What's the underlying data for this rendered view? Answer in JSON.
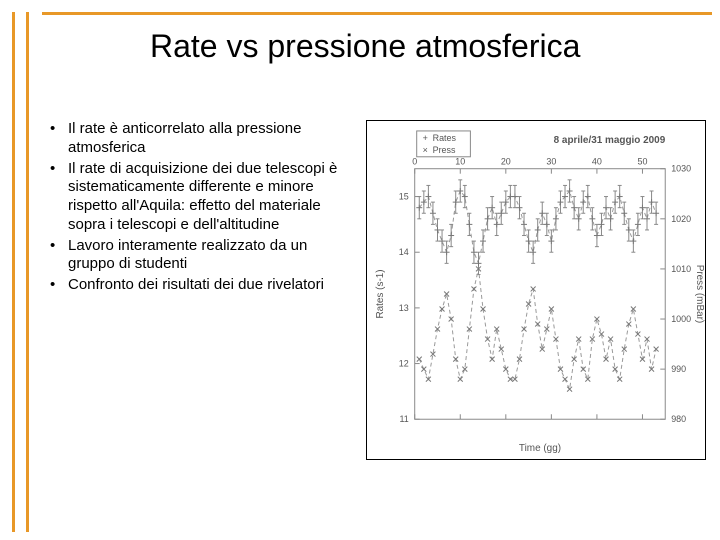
{
  "title": "Rate vs pressione atmosferica",
  "bullets": [
    "Il rate è anticorrelato alla pressione atmosferica",
    "Il rate di acquisizione dei due telescopi è sistematicamente differente e minore rispetto all'Aquila: effetto del materiale sopra i telescopi e dell'altitudine",
    "Lavoro interamente realizzato da un gruppo di studenti",
    "Confronto dei risultati dei due rivelatori"
  ],
  "chart": {
    "type": "dual-axis-scatter-line",
    "title_text": "8 aprile/31 maggio 2009",
    "legend": [
      {
        "symbol": "+",
        "label": "Rates"
      },
      {
        "symbol": "×",
        "label": "Press"
      }
    ],
    "x_axis": {
      "label": "Time (gg)",
      "min": 0,
      "max": 55,
      "ticks": [
        0,
        10,
        20,
        30,
        40,
        50
      ]
    },
    "y_left": {
      "label": "Rates (s-1)",
      "min": 11,
      "max": 15.5,
      "ticks": [
        11,
        12,
        13,
        14,
        15
      ]
    },
    "y_right": {
      "label": "Press (mBar)",
      "min": 980,
      "max": 1030,
      "ticks": [
        980,
        990,
        1000,
        1010,
        1020,
        1030
      ]
    },
    "rates_data": [
      {
        "x": 1,
        "y": 14.8
      },
      {
        "x": 2,
        "y": 14.9
      },
      {
        "x": 3,
        "y": 15.0
      },
      {
        "x": 4,
        "y": 14.7
      },
      {
        "x": 5,
        "y": 14.4
      },
      {
        "x": 6,
        "y": 14.2
      },
      {
        "x": 7,
        "y": 14.0
      },
      {
        "x": 8,
        "y": 14.3
      },
      {
        "x": 9,
        "y": 14.9
      },
      {
        "x": 10,
        "y": 15.1
      },
      {
        "x": 11,
        "y": 15.0
      },
      {
        "x": 12,
        "y": 14.5
      },
      {
        "x": 13,
        "y": 14.0
      },
      {
        "x": 14,
        "y": 13.8
      },
      {
        "x": 15,
        "y": 14.2
      },
      {
        "x": 16,
        "y": 14.6
      },
      {
        "x": 17,
        "y": 14.8
      },
      {
        "x": 18,
        "y": 14.5
      },
      {
        "x": 19,
        "y": 14.7
      },
      {
        "x": 20,
        "y": 14.9
      },
      {
        "x": 21,
        "y": 15.0
      },
      {
        "x": 22,
        "y": 15.0
      },
      {
        "x": 23,
        "y": 14.8
      },
      {
        "x": 24,
        "y": 14.5
      },
      {
        "x": 25,
        "y": 14.2
      },
      {
        "x": 26,
        "y": 14.0
      },
      {
        "x": 27,
        "y": 14.4
      },
      {
        "x": 28,
        "y": 14.7
      },
      {
        "x": 29,
        "y": 14.5
      },
      {
        "x": 30,
        "y": 14.2
      },
      {
        "x": 31,
        "y": 14.6
      },
      {
        "x": 32,
        "y": 14.9
      },
      {
        "x": 33,
        "y": 15.0
      },
      {
        "x": 34,
        "y": 15.1
      },
      {
        "x": 35,
        "y": 14.8
      },
      {
        "x": 36,
        "y": 14.6
      },
      {
        "x": 37,
        "y": 14.9
      },
      {
        "x": 38,
        "y": 15.0
      },
      {
        "x": 39,
        "y": 14.6
      },
      {
        "x": 40,
        "y": 14.3
      },
      {
        "x": 41,
        "y": 14.5
      },
      {
        "x": 42,
        "y": 14.8
      },
      {
        "x": 43,
        "y": 14.6
      },
      {
        "x": 44,
        "y": 14.9
      },
      {
        "x": 45,
        "y": 15.0
      },
      {
        "x": 46,
        "y": 14.7
      },
      {
        "x": 47,
        "y": 14.4
      },
      {
        "x": 48,
        "y": 14.2
      },
      {
        "x": 49,
        "y": 14.5
      },
      {
        "x": 50,
        "y": 14.8
      },
      {
        "x": 51,
        "y": 14.6
      },
      {
        "x": 52,
        "y": 14.9
      },
      {
        "x": 53,
        "y": 14.7
      }
    ],
    "press_data": [
      {
        "x": 1,
        "y": 992
      },
      {
        "x": 2,
        "y": 990
      },
      {
        "x": 3,
        "y": 988
      },
      {
        "x": 4,
        "y": 993
      },
      {
        "x": 5,
        "y": 998
      },
      {
        "x": 6,
        "y": 1002
      },
      {
        "x": 7,
        "y": 1005
      },
      {
        "x": 8,
        "y": 1000
      },
      {
        "x": 9,
        "y": 992
      },
      {
        "x": 10,
        "y": 988
      },
      {
        "x": 11,
        "y": 990
      },
      {
        "x": 12,
        "y": 998
      },
      {
        "x": 13,
        "y": 1006
      },
      {
        "x": 14,
        "y": 1010
      },
      {
        "x": 15,
        "y": 1002
      },
      {
        "x": 16,
        "y": 996
      },
      {
        "x": 17,
        "y": 992
      },
      {
        "x": 18,
        "y": 998
      },
      {
        "x": 19,
        "y": 994
      },
      {
        "x": 20,
        "y": 990
      },
      {
        "x": 21,
        "y": 988
      },
      {
        "x": 22,
        "y": 988
      },
      {
        "x": 23,
        "y": 992
      },
      {
        "x": 24,
        "y": 998
      },
      {
        "x": 25,
        "y": 1003
      },
      {
        "x": 26,
        "y": 1006
      },
      {
        "x": 27,
        "y": 999
      },
      {
        "x": 28,
        "y": 994
      },
      {
        "x": 29,
        "y": 998
      },
      {
        "x": 30,
        "y": 1002
      },
      {
        "x": 31,
        "y": 996
      },
      {
        "x": 32,
        "y": 990
      },
      {
        "x": 33,
        "y": 988
      },
      {
        "x": 34,
        "y": 986
      },
      {
        "x": 35,
        "y": 992
      },
      {
        "x": 36,
        "y": 996
      },
      {
        "x": 37,
        "y": 990
      },
      {
        "x": 38,
        "y": 988
      },
      {
        "x": 39,
        "y": 996
      },
      {
        "x": 40,
        "y": 1000
      },
      {
        "x": 41,
        "y": 997
      },
      {
        "x": 42,
        "y": 992
      },
      {
        "x": 43,
        "y": 996
      },
      {
        "x": 44,
        "y": 990
      },
      {
        "x": 45,
        "y": 988
      },
      {
        "x": 46,
        "y": 994
      },
      {
        "x": 47,
        "y": 999
      },
      {
        "x": 48,
        "y": 1002
      },
      {
        "x": 49,
        "y": 997
      },
      {
        "x": 50,
        "y": 992
      },
      {
        "x": 51,
        "y": 996
      },
      {
        "x": 52,
        "y": 990
      },
      {
        "x": 53,
        "y": 994
      }
    ],
    "rates_error": 0.2,
    "colors": {
      "background": "#ffffff",
      "axis": "#888888",
      "text": "#555555",
      "series": "#999999",
      "marker": "#777777"
    }
  }
}
